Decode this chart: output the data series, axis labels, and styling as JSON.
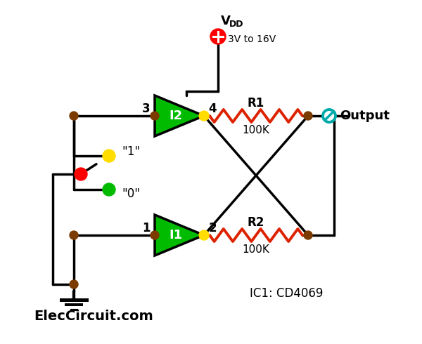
{
  "background": "#ffffff",
  "vdd_voltage": "3V to 16V",
  "ic_label": "IC1: CD4069",
  "website": "ElecCircuit.com",
  "output_label": "Output",
  "r1_label": "R1",
  "r2_label": "R2",
  "r_value": "100K",
  "i1_label": "I1",
  "i2_label": "I2",
  "label1": "\"1\"",
  "label0": "\"0\"",
  "green": "#00BB00",
  "red": "#FF0000",
  "yellow": "#FFDD00",
  "brown": "#7B3B00",
  "cyan": "#00AAAA",
  "black": "#000000",
  "white": "#ffffff",
  "blue": "#0055CC",
  "resistor_color": "#DD2200",
  "lw_main": 2.5
}
